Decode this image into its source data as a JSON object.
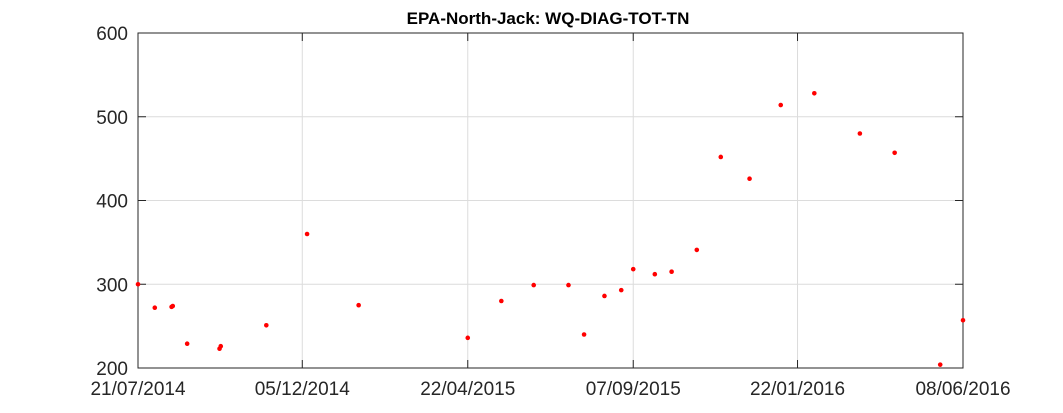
{
  "chart_data": {
    "type": "scatter",
    "title": "EPA-North-Jack: WQ-DIAG-TOT-TN",
    "xlabel": "",
    "ylabel": "",
    "x_axis": "date",
    "xlim": [
      "2014-07-21",
      "2016-06-08"
    ],
    "ylim": [
      200,
      600
    ],
    "xticks": [
      "2014-07-21",
      "2014-12-05",
      "2015-04-22",
      "2015-09-07",
      "2016-01-22",
      "2016-06-08"
    ],
    "xtick_labels": [
      "21/07/2014",
      "05/12/2014",
      "22/04/2015",
      "07/09/2015",
      "22/01/2016",
      "08/06/2016"
    ],
    "yticks": [
      200,
      300,
      400,
      500,
      600
    ],
    "ytick_labels": [
      "200",
      "300",
      "400",
      "500",
      "600"
    ],
    "grid": true,
    "marker_color": "#ff0000",
    "points": [
      {
        "x": "2014-07-21",
        "y": 300
      },
      {
        "x": "2014-08-04",
        "y": 272
      },
      {
        "x": "2014-08-18",
        "y": 273
      },
      {
        "x": "2014-08-19",
        "y": 274
      },
      {
        "x": "2014-08-31",
        "y": 229
      },
      {
        "x": "2014-09-27",
        "y": 223
      },
      {
        "x": "2014-09-28",
        "y": 226
      },
      {
        "x": "2014-11-05",
        "y": 251
      },
      {
        "x": "2014-12-09",
        "y": 360
      },
      {
        "x": "2015-01-21",
        "y": 275
      },
      {
        "x": "2015-04-22",
        "y": 236
      },
      {
        "x": "2015-05-20",
        "y": 280
      },
      {
        "x": "2015-06-16",
        "y": 299
      },
      {
        "x": "2015-07-15",
        "y": 299
      },
      {
        "x": "2015-07-28",
        "y": 240
      },
      {
        "x": "2015-08-14",
        "y": 286
      },
      {
        "x": "2015-08-28",
        "y": 293
      },
      {
        "x": "2015-09-07",
        "y": 318
      },
      {
        "x": "2015-09-25",
        "y": 312
      },
      {
        "x": "2015-10-09",
        "y": 315
      },
      {
        "x": "2015-10-30",
        "y": 341
      },
      {
        "x": "2015-11-19",
        "y": 452
      },
      {
        "x": "2015-12-13",
        "y": 426
      },
      {
        "x": "2016-01-08",
        "y": 514
      },
      {
        "x": "2016-02-05",
        "y": 528
      },
      {
        "x": "2016-03-14",
        "y": 480
      },
      {
        "x": "2016-04-12",
        "y": 457
      },
      {
        "x": "2016-05-20",
        "y": 204
      },
      {
        "x": "2016-06-08",
        "y": 257
      }
    ]
  }
}
